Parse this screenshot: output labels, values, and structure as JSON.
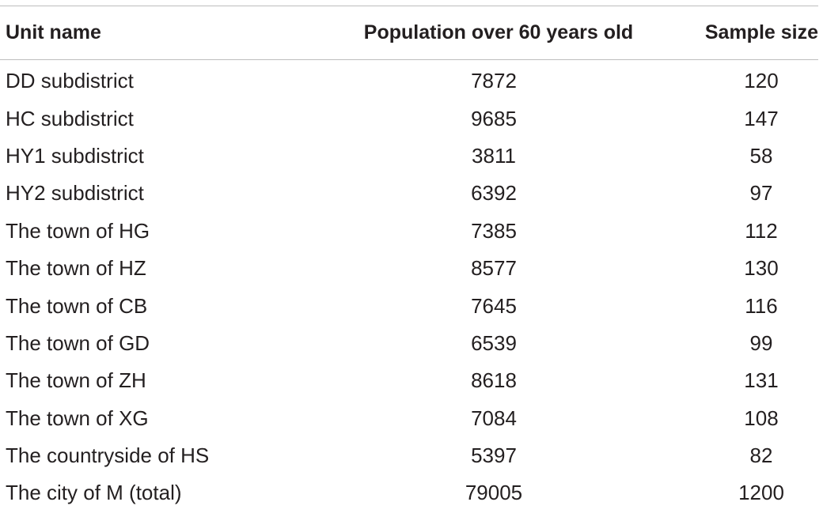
{
  "table": {
    "headers": {
      "unit_name": "Unit name",
      "population": "Population over 60 years old",
      "sample_size": "Sample size"
    },
    "rows": [
      {
        "unit": "DD subdistrict",
        "population": "7872",
        "sample": "120"
      },
      {
        "unit": "HC subdistrict",
        "population": "9685",
        "sample": "147"
      },
      {
        "unit": "HY1 subdistrict",
        "population": "3811",
        "sample": "58"
      },
      {
        "unit": "HY2 subdistrict",
        "population": "6392",
        "sample": "97"
      },
      {
        "unit": "The town of HG",
        "population": "7385",
        "sample": "112"
      },
      {
        "unit": "The town of HZ",
        "population": "8577",
        "sample": "130"
      },
      {
        "unit": "The town of CB",
        "population": "7645",
        "sample": "116"
      },
      {
        "unit": "The town of GD",
        "population": "6539",
        "sample": "99"
      },
      {
        "unit": "The town of ZH",
        "population": "8618",
        "sample": "131"
      },
      {
        "unit": "The town of XG",
        "population": "7084",
        "sample": "108"
      },
      {
        "unit": "The countryside of HS",
        "population": "5397",
        "sample": "82"
      },
      {
        "unit": "The city of M (total)",
        "population": "79005",
        "sample": "1200"
      }
    ]
  }
}
